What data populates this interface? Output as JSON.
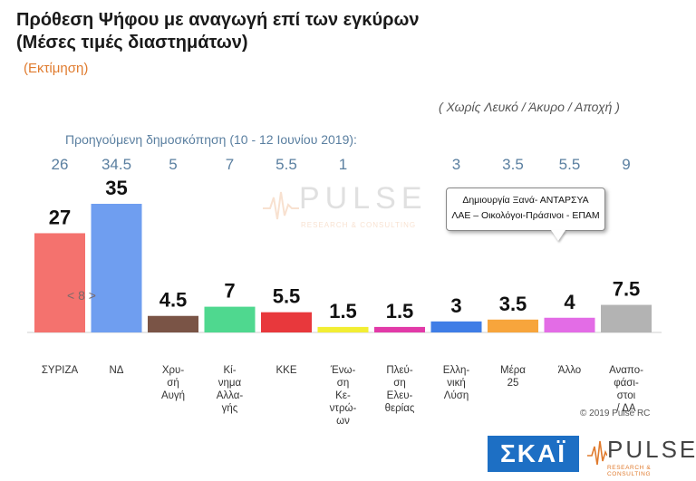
{
  "header": {
    "title_line1": "Πρόθεση Ψήφου με αναγωγή επί των εγκύρων",
    "title_line2": "(Μέσες τιμές διαστημάτων)",
    "estimate": "(Εκτίμηση)"
  },
  "note": "( Χωρίς Λευκό / Άκυρο / Αποχή )",
  "previous": {
    "label": "Προηγούμενη δημοσκόπηση (10 - 12 Ιουνίου 2019):",
    "values": [
      "26",
      "34.5",
      "5",
      "7",
      "5.5",
      "1",
      "",
      "3",
      "3.5",
      "5.5",
      "9"
    ]
  },
  "callout": {
    "line1": "Δημιουργία Ξανά-  ΑΝΤΑΡΣΥΑ",
    "line2": "ΛΑΕ – Οικολόγοι-Πράσινοι - ΕΠΑΜ"
  },
  "nav_hint": "< 8 >",
  "watermark": {
    "text": "PULSE",
    "sub": "RESEARCH & CONSULTING"
  },
  "copyright": "© 2019 Pulse RC",
  "logos": {
    "skai": "ΣΚΑΪ",
    "pulse": "PULSE",
    "pulse_sub": "RESEARCH & CONSULTING"
  },
  "colors": {
    "accent_orange": "#e07b2e",
    "prev_blue": "#5a7fa0",
    "skai_blue": "#1d6fc4"
  },
  "chart_data": {
    "type": "bar",
    "title": "",
    "ylim": [
      0,
      40
    ],
    "grid": false,
    "categories": [
      [
        "ΣΥΡΙΖΑ"
      ],
      [
        "ΝΔ"
      ],
      [
        "Χρυ-",
        "σή",
        "Αυγή"
      ],
      [
        "Κί-",
        "νημα",
        "Αλλα-",
        "γής"
      ],
      [
        "ΚΚΕ"
      ],
      [
        "Ένω-",
        "ση",
        "Κε-",
        "ντρώ-",
        "ων"
      ],
      [
        "Πλεύ-",
        "ση",
        "Ελευ-",
        "θερίας"
      ],
      [
        "Ελλη-",
        "νική",
        "Λύση"
      ],
      [
        "Μέρα",
        "25"
      ],
      [
        "Άλλο"
      ],
      [
        "Αναπο-",
        "φάσι-",
        "στοι",
        "/ ΔΑ"
      ]
    ],
    "values": [
      27,
      35,
      4.5,
      7,
      5.5,
      1.5,
      1.5,
      3,
      3.5,
      4,
      7.5
    ],
    "value_labels": [
      "27",
      "35",
      "4.5",
      "7",
      "5.5",
      "1.5",
      "1.5",
      "3",
      "3.5",
      "4",
      "7.5"
    ],
    "colors": [
      "#f4726e",
      "#6f9ef0",
      "#7a5446",
      "#4fd88f",
      "#e8383c",
      "#f2ee33",
      "#e23aa8",
      "#3f7de6",
      "#f7a53c",
      "#e36ce6",
      "#b3b3b3"
    ]
  }
}
